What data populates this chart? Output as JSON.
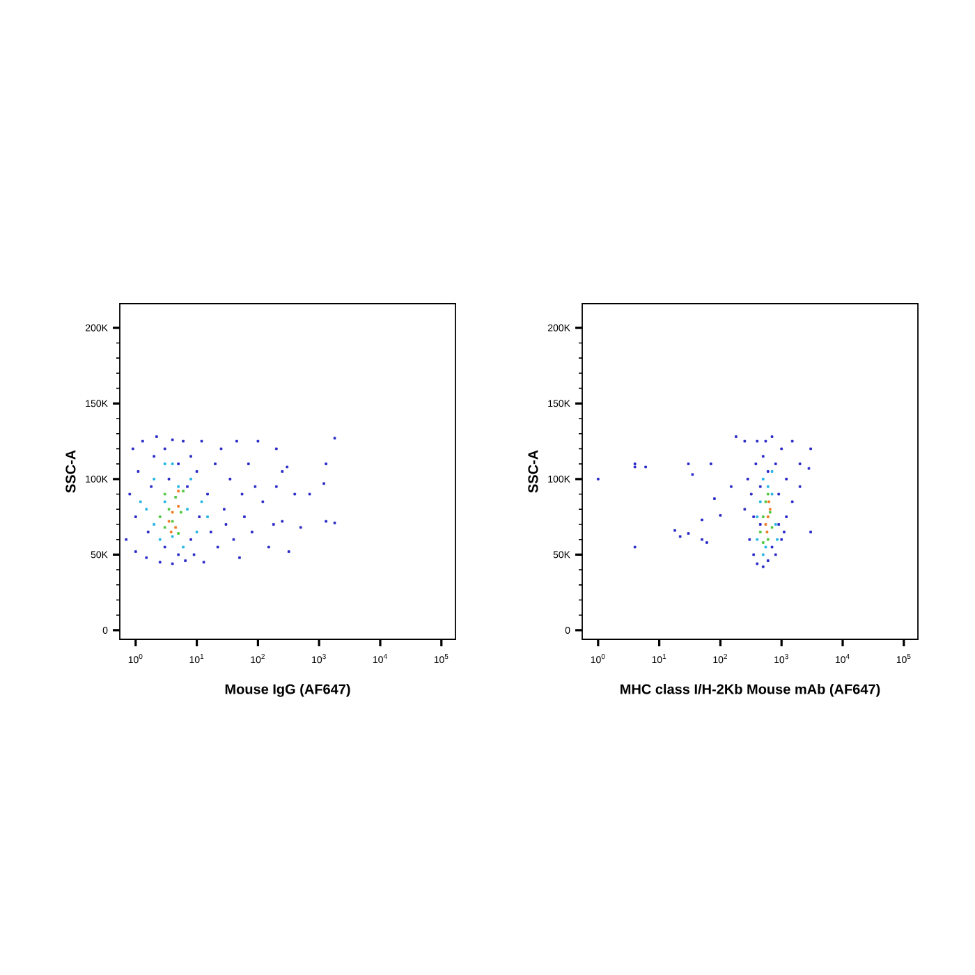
{
  "chart_data": [
    {
      "type": "scatter",
      "xlabel": "Mouse IgG (AF647)",
      "ylabel": "SSC-A",
      "log": "x",
      "xlim": [
        0.55,
        170000
      ],
      "ylim": [
        -6000,
        216000
      ],
      "xticks": [
        {
          "value": 1,
          "label": "10$^{0}$"
        },
        {
          "value": 10,
          "label": "10$^{1}$"
        },
        {
          "value": 100,
          "label": "10$^{2}$"
        },
        {
          "value": 1000,
          "label": "10$^{3}$"
        },
        {
          "value": 10000,
          "label": "10$^{4}$"
        },
        {
          "value": 100000,
          "label": "10$^{5}$"
        }
      ],
      "yticks": [
        0,
        {
          "value": 50000,
          "label": "50K"
        },
        {
          "value": 100000,
          "label": "100K"
        },
        {
          "value": 150000,
          "label": "150K"
        },
        {
          "value": 200000,
          "label": "200K"
        }
      ],
      "series": [
        {
          "color": "#2626c8",
          "x": [
            0.7,
            0.8,
            0.9,
            1.0,
            1.0,
            1.1,
            1.3,
            1.5,
            1.6,
            1.8,
            2,
            2.2,
            2.5,
            3,
            3,
            3.5,
            4,
            4,
            5,
            5,
            6,
            6.5,
            7,
            8,
            8,
            9,
            10,
            11,
            12,
            13,
            15,
            17,
            20,
            22,
            25,
            28,
            30,
            35,
            40,
            45,
            50,
            55,
            60,
            70,
            80,
            100,
            120,
            150,
            180,
            200,
            250,
            300,
            320,
            400,
            500,
            700,
            1200,
            1300,
            1300,
            1800,
            1800,
            250,
            200,
            90
          ],
          "values": [
            60000,
            90000,
            120000,
            52000,
            75000,
            105000,
            125000,
            48000,
            65000,
            95000,
            115000,
            128000,
            45000,
            55000,
            120000,
            100000,
            44000,
            126000,
            50000,
            110000,
            125000,
            46000,
            95000,
            60000,
            115000,
            50000,
            105000,
            75000,
            125000,
            45000,
            90000,
            65000,
            110000,
            55000,
            120000,
            80000,
            70000,
            100000,
            60000,
            125000,
            48000,
            90000,
            75000,
            110000,
            65000,
            125000,
            85000,
            55000,
            70000,
            95000,
            105000,
            108000,
            52000,
            90000,
            68000,
            90000,
            97000,
            110000,
            72000,
            127000,
            71000,
            72000,
            120000,
            95000
          ]
        },
        {
          "color": "#22b4e4",
          "x": [
            1.5,
            2,
            2,
            2.5,
            3,
            3,
            4,
            5,
            6,
            7,
            8,
            10,
            1.2,
            12,
            15,
            4
          ],
          "values": [
            80000,
            70000,
            100000,
            60000,
            110000,
            85000,
            62000,
            95000,
            55000,
            80000,
            100000,
            65000,
            85000,
            85000,
            75000,
            110000
          ]
        },
        {
          "color": "#4cc83c",
          "x": [
            2.5,
            3,
            3.5,
            4,
            4.5,
            5,
            5.5,
            6,
            3
          ],
          "values": [
            75000,
            68000,
            80000,
            72000,
            88000,
            64000,
            78000,
            92000,
            90000
          ]
        },
        {
          "color": "#f07820",
          "x": [
            3.5,
            4,
            4.5,
            5,
            3.8,
            5
          ],
          "values": [
            72000,
            78000,
            68000,
            82000,
            65000,
            92000
          ]
        }
      ]
    },
    {
      "type": "scatter",
      "xlabel": "MHC class I/H-2Kb Mouse mAb (AF647)",
      "ylabel": "SSC-A",
      "log": "x",
      "xlim": [
        0.55,
        170000
      ],
      "ylim": [
        -6000,
        216000
      ],
      "xticks": [
        {
          "value": 1,
          "label": "10$^{0}$"
        },
        {
          "value": 10,
          "label": "10$^{1}$"
        },
        {
          "value": 100,
          "label": "10$^{2}$"
        },
        {
          "value": 1000,
          "label": "10$^{3}$"
        },
        {
          "value": 10000,
          "label": "10$^{4}$"
        },
        {
          "value": 100000,
          "label": "10$^{5}$"
        }
      ],
      "yticks": [
        0,
        {
          "value": 50000,
          "label": "50K"
        },
        {
          "value": 100000,
          "label": "100K"
        },
        {
          "value": 150000,
          "label": "150K"
        },
        {
          "value": 200000,
          "label": "200K"
        }
      ],
      "series": [
        {
          "color": "#2626c8",
          "x": [
            1.0,
            4,
            4,
            6,
            4,
            30,
            35,
            70,
            18,
            22,
            30,
            50,
            60,
            50,
            80,
            100,
            150,
            180,
            250,
            3000,
            3000,
            2800,
            300,
            320,
            350,
            380,
            400,
            400,
            450,
            500,
            500,
            550,
            600,
            700,
            800,
            800,
            900,
            1000,
            1000,
            1200,
            1200,
            1500,
            1500,
            2000,
            2000,
            250,
            280,
            600,
            700,
            900,
            1100,
            350,
            450
          ],
          "values": [
            100000,
            110000,
            108000,
            108000,
            55000,
            110000,
            103000,
            110000,
            66000,
            62000,
            64000,
            60000,
            58000,
            73000,
            87000,
            76000,
            95000,
            128000,
            125000,
            120000,
            65000,
            107000,
            60000,
            90000,
            50000,
            110000,
            44000,
            125000,
            70000,
            42000,
            115000,
            125000,
            46000,
            128000,
            50000,
            110000,
            90000,
            60000,
            120000,
            100000,
            75000,
            125000,
            85000,
            110000,
            95000,
            80000,
            100000,
            105000,
            55000,
            70000,
            65000,
            75000,
            95000
          ]
        },
        {
          "color": "#22b4e4",
          "x": [
            400,
            450,
            500,
            550,
            600,
            700,
            800,
            850,
            400,
            500,
            700
          ],
          "values": [
            60000,
            85000,
            100000,
            55000,
            95000,
            90000,
            70000,
            60000,
            75000,
            50000,
            105000
          ]
        },
        {
          "color": "#4cc83c",
          "x": [
            450,
            500,
            550,
            600,
            650,
            700,
            500,
            600
          ],
          "values": [
            65000,
            75000,
            85000,
            60000,
            78000,
            68000,
            58000,
            90000
          ]
        },
        {
          "color": "#f07820",
          "x": [
            550,
            600,
            650,
            580,
            620
          ],
          "values": [
            70000,
            75000,
            80000,
            65000,
            85000
          ]
        }
      ]
    }
  ]
}
